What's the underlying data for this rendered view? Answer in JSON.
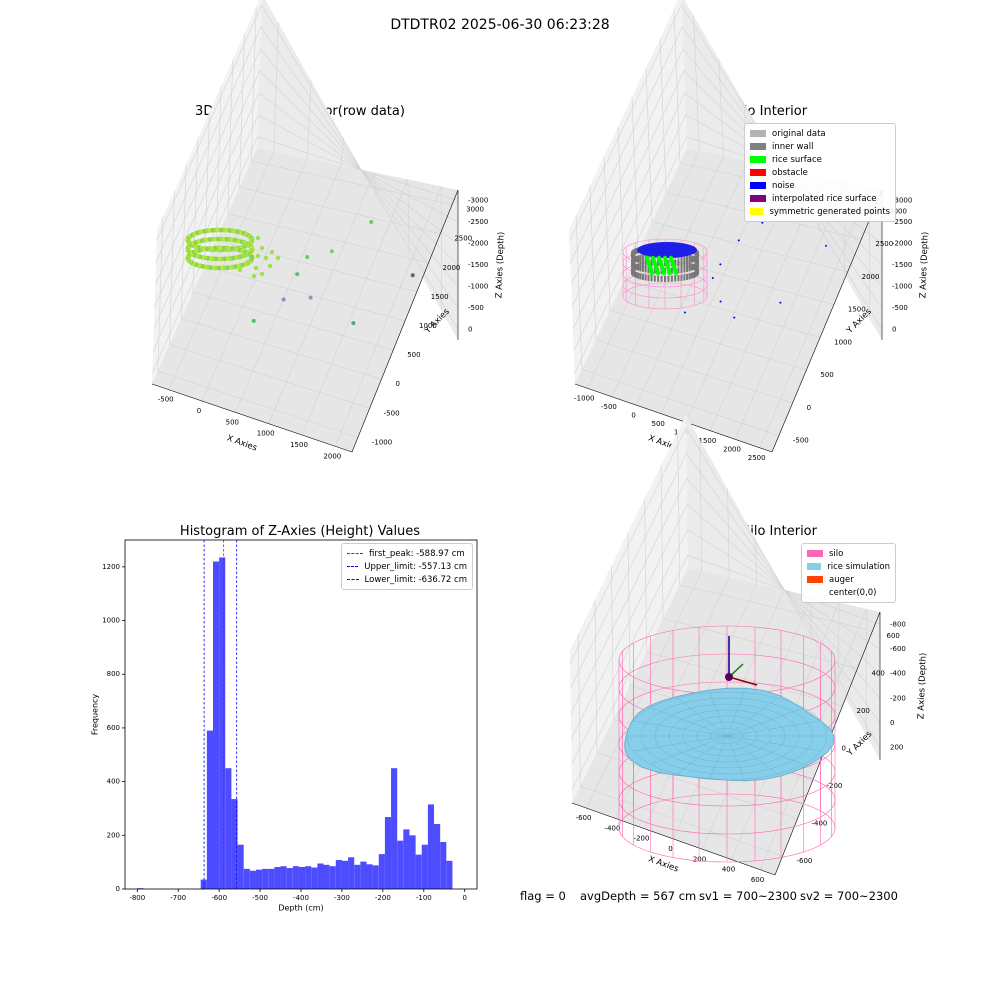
{
  "figure": {
    "suptitle": "DTDTR02 2025-06-30 06:23:28"
  },
  "chart_data": [
    {
      "id": "raw",
      "type": "scatter",
      "title": "3D Plot of Silo Interior(row data)",
      "xlabel": "X Axies",
      "ylabel": "Y Axies",
      "zlabel": "Z Axies (Depth)",
      "x_ticks": [
        "-500",
        "0",
        "500",
        "1000",
        "1500",
        "2000"
      ],
      "y_ticks": [
        "-1000",
        "-500",
        "0",
        "500",
        "1000",
        "1500",
        "2000",
        "2500",
        "3000"
      ],
      "z_ticks": [
        "0",
        "-500",
        "-1000",
        "-1500",
        "-2000",
        "-2500",
        "-3000"
      ],
      "xlim": [
        -650,
        2200
      ],
      "ylim": [
        -1100,
        3200
      ],
      "zlim": [
        -3300,
        0
      ],
      "points": [
        {
          "x": 1000,
          "y": 400,
          "z": -1500
        },
        {
          "x": 1250,
          "y": 700,
          "z": -1600
        },
        {
          "x": 1600,
          "y": 1300,
          "z": -1500
        },
        {
          "x": 1100,
          "y": 300,
          "z": -2200
        },
        {
          "x": 1650,
          "y": 500,
          "z": -2700
        },
        {
          "x": 2050,
          "y": 1800,
          "z": -3000
        },
        {
          "x": 500,
          "y": -300,
          "z": -2300
        },
        {
          "x": 800,
          "y": 50,
          "z": -2100
        },
        {
          "x": 900,
          "y": 300,
          "z": -1800
        }
      ]
    },
    {
      "id": "classify",
      "type": "scatter",
      "title": "3D classify of Silo Interior",
      "xlabel": "X Axies",
      "ylabel": "Y Axies",
      "zlabel": "Z Axies (Depth)",
      "x_ticks": [
        "-1000",
        "-500",
        "0",
        "500",
        "1000",
        "1500",
        "2000",
        "2500"
      ],
      "y_ticks": [
        "-500",
        "0",
        "500",
        "1000",
        "1500",
        "2000",
        "2500",
        "3000"
      ],
      "z_ticks": [
        "0",
        "-500",
        "-1000",
        "-1500",
        "-2000",
        "-2500",
        "-3000"
      ],
      "xlim": [
        -1200,
        2700
      ],
      "ylim": [
        -700,
        3200
      ],
      "zlim": [
        -3300,
        0
      ],
      "legend": [
        {
          "label": "original data",
          "color": "#b3b3b3"
        },
        {
          "label": "inner wall",
          "color": "#808080"
        },
        {
          "label": "rice surface",
          "color": "#00ff00"
        },
        {
          "label": "obstacle",
          "color": "#ff0000"
        },
        {
          "label": "noise",
          "color": "#0000ff"
        },
        {
          "label": "interpolated rice surface",
          "color": "#800080"
        },
        {
          "label": "symmetric generated points",
          "color": "#ffff00"
        }
      ],
      "noise_points": [
        {
          "x": 1500,
          "y": 1200,
          "z": -1300
        },
        {
          "x": 1200,
          "y": 900,
          "z": -1400
        },
        {
          "x": 1000,
          "y": 600,
          "z": -1600
        },
        {
          "x": 2000,
          "y": 1800,
          "z": -1300
        },
        {
          "x": 1300,
          "y": 500,
          "z": -2500
        },
        {
          "x": 2200,
          "y": 2100,
          "z": -2700
        },
        {
          "x": 1800,
          "y": 1200,
          "z": -2900
        },
        {
          "x": 500,
          "y": 200,
          "z": -2300
        },
        {
          "x": 1100,
          "y": 400,
          "z": -2100
        },
        {
          "x": 900,
          "y": 500,
          "z": -1800
        }
      ]
    },
    {
      "id": "histogram",
      "type": "bar",
      "title": "Histogram of Z-Axies (Height) Values",
      "xlabel": "Depth (cm)",
      "ylabel": "Frequency",
      "xlim": [
        -830,
        30
      ],
      "ylim": [
        0,
        1300
      ],
      "x_ticks": [
        -800,
        -700,
        -600,
        -500,
        -400,
        -300,
        -200,
        -100,
        0
      ],
      "y_ticks": [
        0,
        200,
        400,
        600,
        800,
        1000,
        1200
      ],
      "bar_color": "#4d4dff",
      "bins": [
        {
          "x0": -800,
          "x1": -785,
          "count": 3
        },
        {
          "x0": -645,
          "x1": -630,
          "count": 35
        },
        {
          "x0": -630,
          "x1": -615,
          "count": 590
        },
        {
          "x0": -615,
          "x1": -600,
          "count": 1220
        },
        {
          "x0": -600,
          "x1": -585,
          "count": 1235
        },
        {
          "x0": -585,
          "x1": -570,
          "count": 450
        },
        {
          "x0": -570,
          "x1": -555,
          "count": 335
        },
        {
          "x0": -555,
          "x1": -540,
          "count": 165
        },
        {
          "x0": -540,
          "x1": -525,
          "count": 75
        },
        {
          "x0": -525,
          "x1": -510,
          "count": 68
        },
        {
          "x0": -510,
          "x1": -495,
          "count": 72
        },
        {
          "x0": -495,
          "x1": -480,
          "count": 75
        },
        {
          "x0": -480,
          "x1": -465,
          "count": 75
        },
        {
          "x0": -465,
          "x1": -450,
          "count": 82
        },
        {
          "x0": -450,
          "x1": -435,
          "count": 85
        },
        {
          "x0": -435,
          "x1": -420,
          "count": 78
        },
        {
          "x0": -420,
          "x1": -405,
          "count": 85
        },
        {
          "x0": -405,
          "x1": -390,
          "count": 82
        },
        {
          "x0": -390,
          "x1": -375,
          "count": 85
        },
        {
          "x0": -375,
          "x1": -360,
          "count": 80
        },
        {
          "x0": -360,
          "x1": -345,
          "count": 95
        },
        {
          "x0": -345,
          "x1": -330,
          "count": 90
        },
        {
          "x0": -330,
          "x1": -315,
          "count": 85
        },
        {
          "x0": -315,
          "x1": -300,
          "count": 108
        },
        {
          "x0": -300,
          "x1": -285,
          "count": 105
        },
        {
          "x0": -285,
          "x1": -270,
          "count": 118
        },
        {
          "x0": -270,
          "x1": -255,
          "count": 90
        },
        {
          "x0": -255,
          "x1": -240,
          "count": 102
        },
        {
          "x0": -240,
          "x1": -225,
          "count": 92
        },
        {
          "x0": -225,
          "x1": -210,
          "count": 88
        },
        {
          "x0": -210,
          "x1": -195,
          "count": 130
        },
        {
          "x0": -195,
          "x1": -180,
          "count": 268
        },
        {
          "x0": -180,
          "x1": -165,
          "count": 450
        },
        {
          "x0": -165,
          "x1": -150,
          "count": 180
        },
        {
          "x0": -150,
          "x1": -135,
          "count": 222
        },
        {
          "x0": -135,
          "x1": -120,
          "count": 200
        },
        {
          "x0": -120,
          "x1": -105,
          "count": 128
        },
        {
          "x0": -105,
          "x1": -90,
          "count": 165
        },
        {
          "x0": -90,
          "x1": -75,
          "count": 315
        },
        {
          "x0": -75,
          "x1": -60,
          "count": 242
        },
        {
          "x0": -60,
          "x1": -45,
          "count": 175
        },
        {
          "x0": -45,
          "x1": -30,
          "count": 105
        }
      ],
      "vlines": [
        {
          "label": "first_peak: -588.97 cm",
          "value": -588.97,
          "color": "#ff0000"
        },
        {
          "label": "Upper_limit: -557.13 cm",
          "value": -557.13,
          "color": "#0000ff"
        },
        {
          "label": "Lower_limit: -636.72 cm",
          "value": -636.72,
          "color": "#0000ff"
        }
      ]
    },
    {
      "id": "simulation",
      "type": "scatter",
      "title": "3D simulation of Silo Interior",
      "xlabel": "X Axies",
      "ylabel": "Y Axies",
      "zlabel": "Z Axies (Depth)",
      "x_ticks": [
        "-600",
        "-400",
        "-200",
        "0",
        "200",
        "400",
        "600"
      ],
      "y_ticks": [
        "-600",
        "-400",
        "-200",
        "0",
        "200",
        "400",
        "600"
      ],
      "z_ticks": [
        "200",
        "0",
        "-200",
        "-400",
        "-600",
        "-800"
      ],
      "xlim": [
        -700,
        700
      ],
      "ylim": [
        -700,
        700
      ],
      "zlim": [
        -950,
        300
      ],
      "legend": [
        {
          "label": "silo",
          "color": "#ff69b4"
        },
        {
          "label": "rice simulation",
          "color": "#87ceeb"
        },
        {
          "label": "auger",
          "color": "#ff4500"
        },
        {
          "label": "center(0,0)",
          "color": ""
        }
      ]
    }
  ],
  "footer": {
    "flag": "flag = 0",
    "avgDepth": "avgDepth = 567 cm",
    "sv1": "sv1 = 700~2300",
    "sv2": "sv2 = 700~2300"
  }
}
